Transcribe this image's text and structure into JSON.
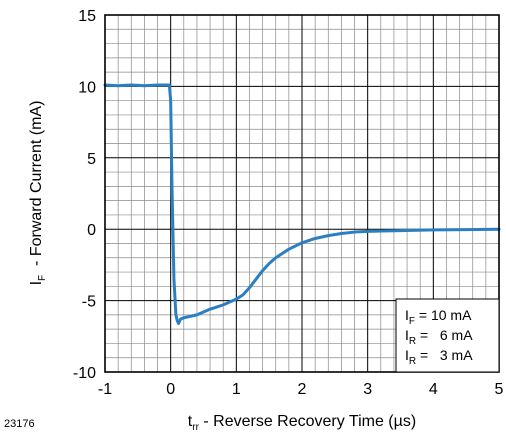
{
  "figure_id": "23176",
  "chart_data": {
    "type": "line",
    "title": "",
    "xlabel": {
      "main": "t",
      "sub": "rr",
      "rest": " - Reverse Recovery Time (µs)"
    },
    "ylabel": {
      "main": "I",
      "sub": "F",
      "rest": "  - Forward Current (mA)"
    },
    "xlim": [
      -1,
      5
    ],
    "ylim": [
      -10,
      15
    ],
    "x_ticks": [
      "-1",
      "0",
      "1",
      "2",
      "3",
      "4",
      "5"
    ],
    "y_ticks": [
      "-10",
      "-5",
      "0",
      "5",
      "10",
      "15"
    ],
    "grid": true,
    "minor_grid_per_major_x": 5,
    "minor_grid_per_major_y": 5,
    "line_color": "#2b7fc1",
    "legend_location": "bottom-right",
    "conditions": [
      {
        "sym": "I",
        "sub": "F",
        "eq": " = 10 mA"
      },
      {
        "sym": "I",
        "sub": "R",
        "eq": " =   6 mA"
      },
      {
        "sym": "I",
        "sub": "R",
        "eq": " =   3 mA"
      }
    ],
    "series": [
      {
        "x": [
          -1.0,
          -0.8,
          -0.6,
          -0.4,
          -0.2,
          -0.05,
          -0.02,
          0.0,
          0.02,
          0.05,
          0.08,
          0.1,
          0.12,
          0.15,
          0.2,
          0.3,
          0.4,
          0.5,
          0.6,
          0.7,
          0.8,
          0.9,
          1.0,
          1.1,
          1.2,
          1.3,
          1.4,
          1.5,
          1.6,
          1.8,
          2.0,
          2.2,
          2.4,
          2.6,
          2.8,
          3.0,
          3.5,
          4.0,
          4.5,
          5.0
        ],
        "y": [
          10.1,
          10.05,
          10.1,
          10.05,
          10.1,
          10.1,
          10.1,
          9.0,
          3.0,
          -3.5,
          -6.0,
          -6.4,
          -6.6,
          -6.3,
          -6.2,
          -6.1,
          -6.0,
          -5.8,
          -5.6,
          -5.45,
          -5.3,
          -5.1,
          -4.9,
          -4.6,
          -4.1,
          -3.5,
          -2.9,
          -2.4,
          -2.0,
          -1.4,
          -0.95,
          -0.65,
          -0.45,
          -0.3,
          -0.2,
          -0.15,
          -0.1,
          -0.05,
          -0.03,
          0.0
        ]
      }
    ]
  }
}
